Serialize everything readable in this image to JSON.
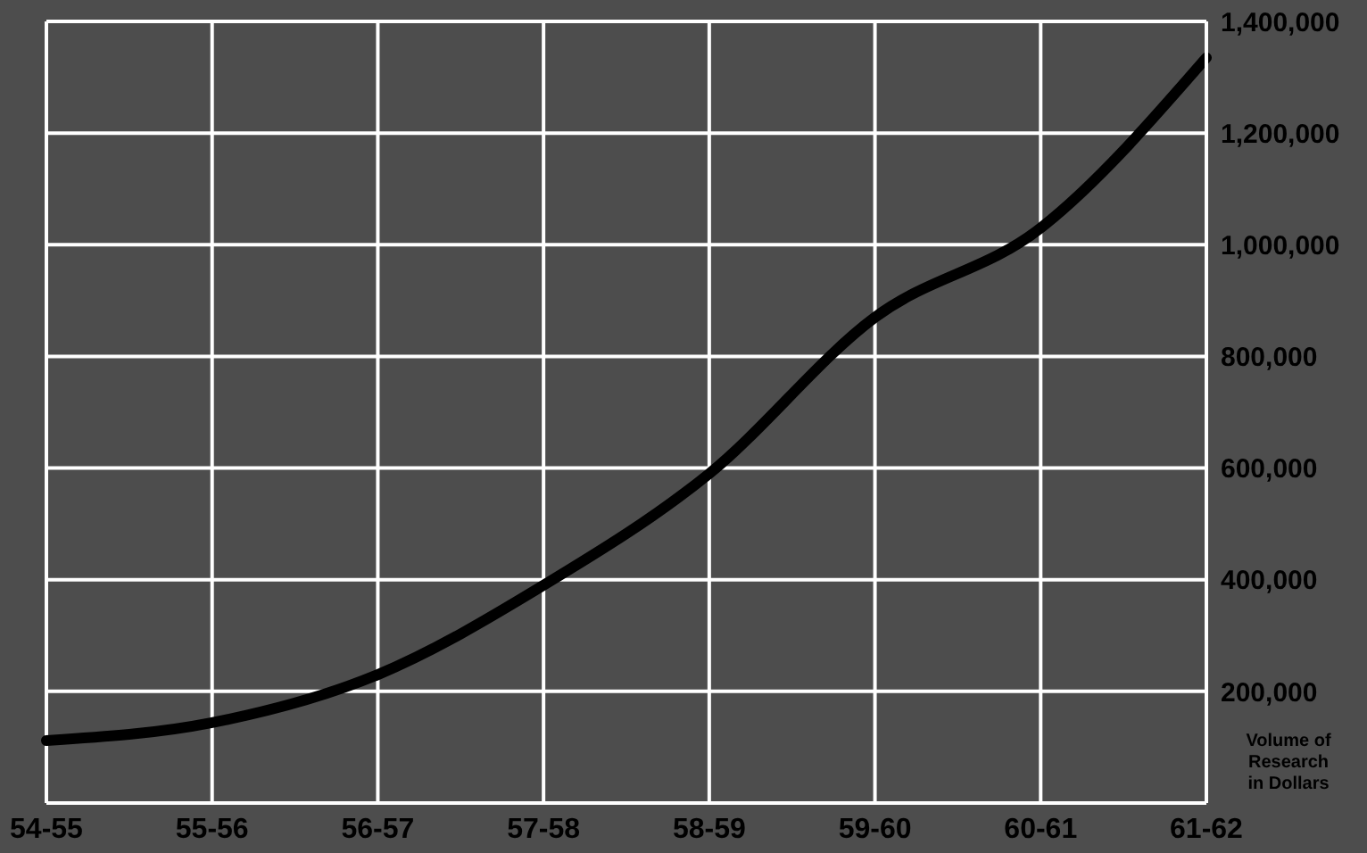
{
  "chart_data": {
    "type": "line",
    "ylabel": "Volume of\nResearch\nin Dollars",
    "categories": [
      "54-55",
      "55-56",
      "56-57",
      "57-58",
      "58-59",
      "59-60",
      "60-61",
      "61-62"
    ],
    "series": [
      {
        "color": "#000000",
        "values": [
          112000,
          144000,
          230000,
          390000,
          590000,
          870000,
          1030000,
          1335000
        ]
      }
    ],
    "ylim": [
      0,
      1400000
    ],
    "yticks": [
      {
        "value": 200000,
        "label": "200,000"
      },
      {
        "value": 400000,
        "label": "400,000"
      },
      {
        "value": 600000,
        "label": "600,000"
      },
      {
        "value": 800000,
        "label": "800,000"
      },
      {
        "value": 1000000,
        "label": "1,000,000"
      },
      {
        "value": 1200000,
        "label": "1,200,000"
      },
      {
        "value": 1400000,
        "label": "1,400,000"
      }
    ],
    "grid": true,
    "legend": false,
    "marker": "none",
    "line_style": "solid"
  }
}
